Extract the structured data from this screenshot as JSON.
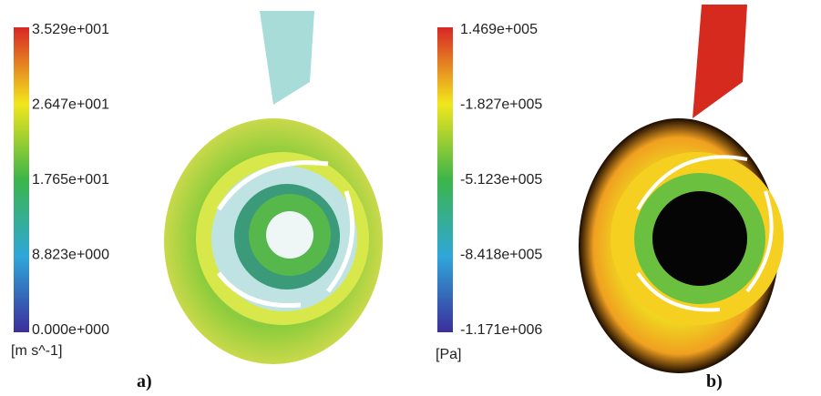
{
  "panels": [
    {
      "caption": "a)",
      "unit": "[m s^-1]",
      "scale_labels": [
        "3.529e+001",
        "2.647e+001",
        "1.765e+001",
        "8.823e+000",
        "0.000e+000"
      ]
    },
    {
      "caption": "b)",
      "unit": "[Pa]",
      "scale_labels": [
        "1.469e+005",
        "-1.827e+005",
        "-5.123e+005",
        "-8.418e+005",
        "-1.171e+006"
      ]
    }
  ]
}
